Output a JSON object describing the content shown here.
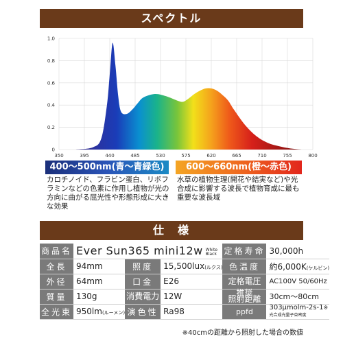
{
  "spectrum_section": {
    "header": "スペクトル",
    "band_blue": "400～500nm(青～青緑色)",
    "band_orange": "600～660nm(橙～赤色)",
    "desc_left": "カロチノイド、フラビン蛋白、リボフラミンなどの色素に作用し植物が光の方向に曲がる屈光性や形態形成に大きな効果",
    "desc_right": "水草の植物生理(開花や結実など)や光合成に影響する波長で植物育成に最も重要な波長域"
  },
  "chart_data": {
    "type": "area",
    "title": "",
    "xlabel": "",
    "ylabel": "",
    "xlim": [
      350,
      800
    ],
    "ylim": [
      0,
      1.0
    ],
    "x_ticks": [
      "350",
      "395",
      "440",
      "485",
      "530",
      "575",
      "620",
      "665",
      "710",
      "755",
      "800"
    ],
    "y_ticks": [
      "0",
      "0.2",
      "0.4",
      "0.6",
      "0.8",
      "1.0"
    ],
    "grid": true,
    "x": [
      380,
      410,
      425,
      435,
      440,
      445,
      450,
      455,
      460,
      470,
      480,
      490,
      500,
      520,
      540,
      560,
      570,
      580,
      590,
      600,
      610,
      620,
      630,
      640,
      650,
      660,
      680,
      700,
      720,
      740,
      760,
      780
    ],
    "y": [
      0,
      0.02,
      0.1,
      0.4,
      0.68,
      0.96,
      0.76,
      0.48,
      0.34,
      0.32,
      0.36,
      0.42,
      0.47,
      0.5,
      0.48,
      0.44,
      0.43,
      0.46,
      0.5,
      0.53,
      0.55,
      0.55,
      0.53,
      0.49,
      0.44,
      0.36,
      0.22,
      0.12,
      0.06,
      0.03,
      0.01,
      0
    ]
  },
  "spec_section": {
    "header": "仕　様",
    "rows": [
      {
        "l1": "商品名",
        "model": "Ever Sun365 mini12w",
        "model_sub1": "White",
        "model_sub2": "Black",
        "l2": "定格寿命",
        "v2": "30,000h"
      },
      {
        "l1": "全長",
        "v1": "94mm",
        "l2": "照度",
        "v2": "15,500lux",
        "v2_unit": "(ルクス)",
        "l3": "色温度",
        "v3": "約6,000K",
        "v3_unit": "(ケルビン)"
      },
      {
        "l1": "外径",
        "v1": "64mm",
        "l2": "口金",
        "v2": "E26",
        "l3": "定格電圧",
        "v3": "AC100V 50/60Hz"
      },
      {
        "l1": "質量",
        "v1": "130g",
        "l2": "消費電力",
        "v2": "12W",
        "l3a": "推奨",
        "l3b": "照射距離",
        "v3": "30cm～80cm"
      },
      {
        "l1": "全光束",
        "v1": "950lm",
        "v1_unit": "(ルーメン)",
        "l2": "演色性",
        "v2": "Ra98",
        "l3": "ppfd",
        "v3": "303μmolm-2s-1",
        "v3_mark": "※",
        "v3_sub": "光合成光量子束密度"
      }
    ],
    "footnote": "※40cmの距離から照射した場合の数値"
  },
  "colors": {
    "header_bg": "#6a3a1a",
    "label_bg": "#7a7a7a"
  }
}
